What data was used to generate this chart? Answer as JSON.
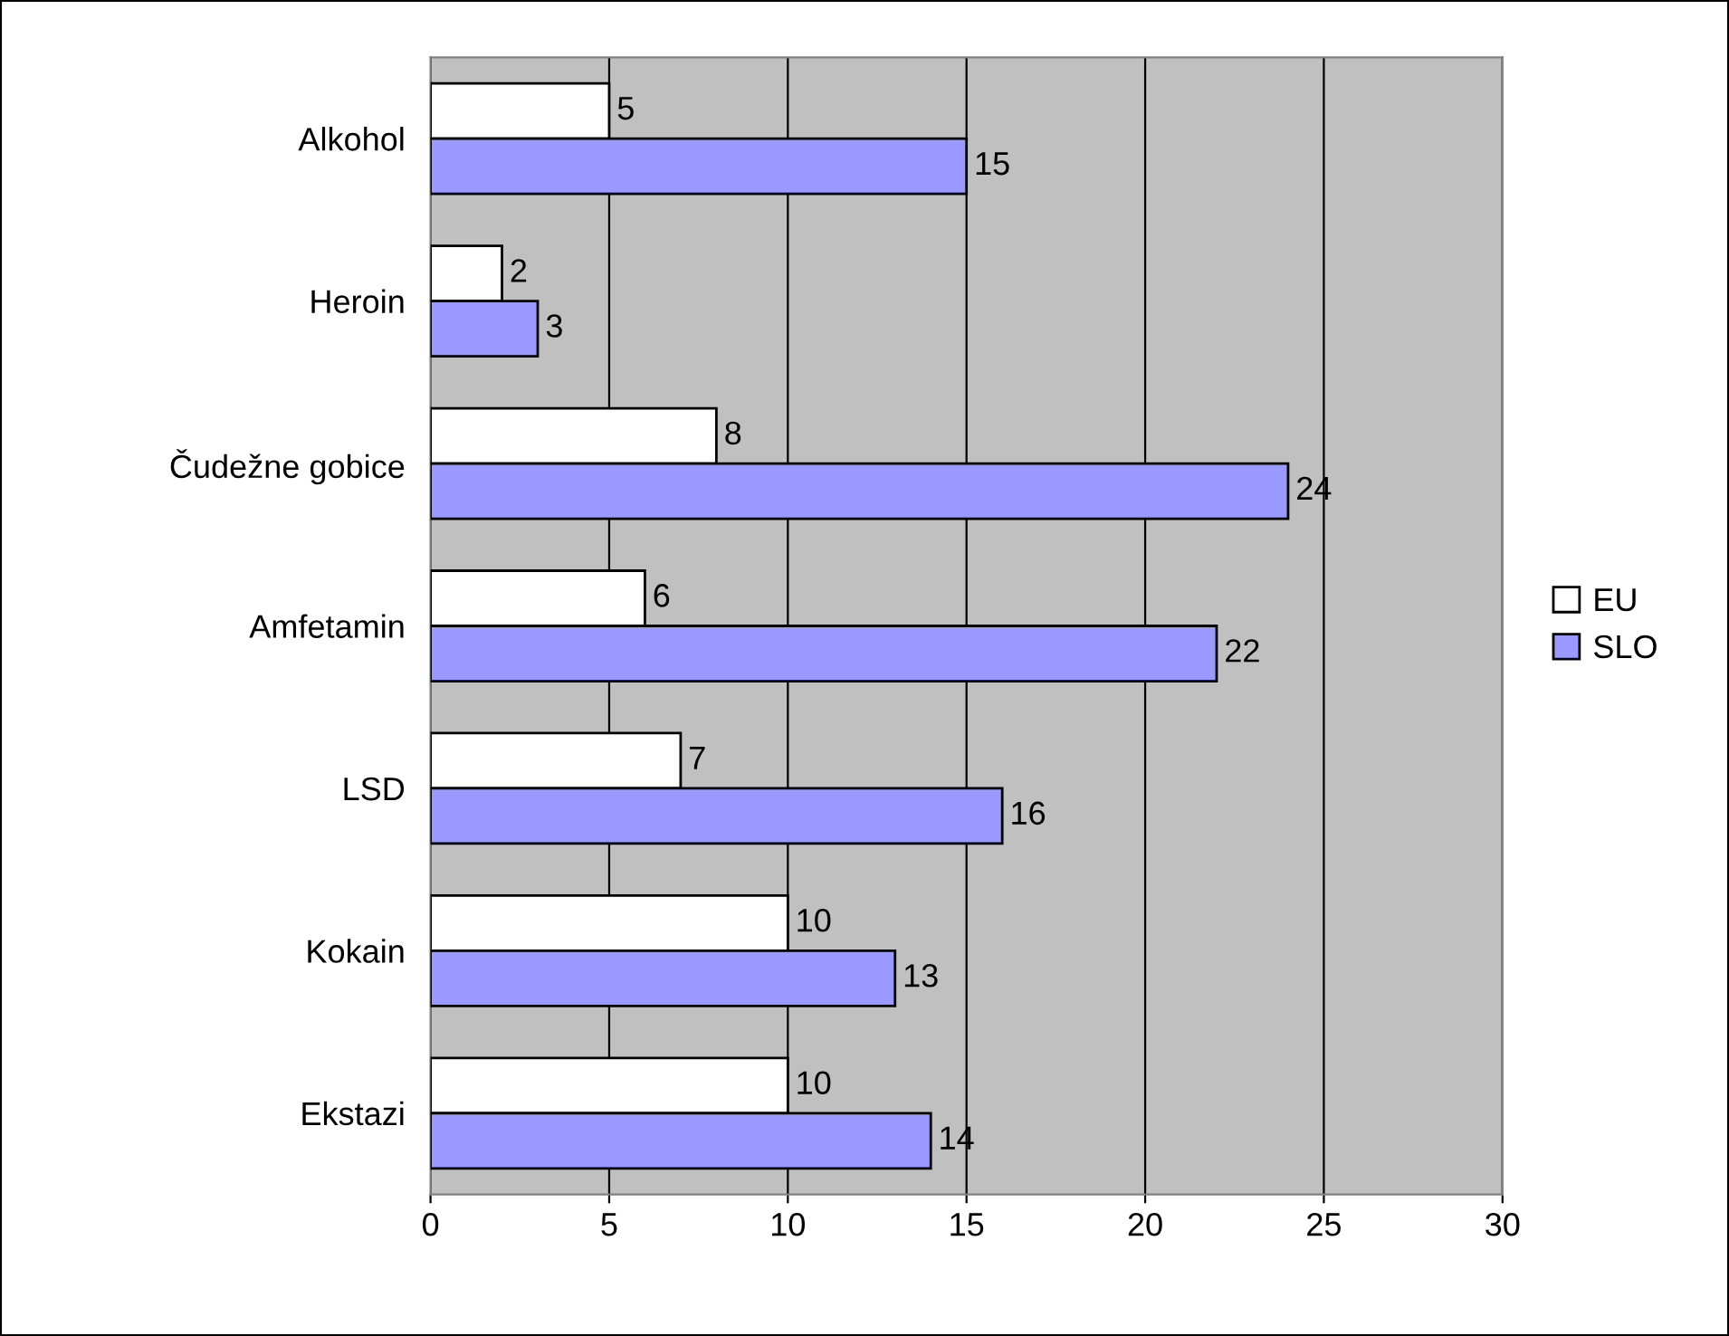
{
  "chart_data": {
    "type": "bar",
    "orientation": "horizontal",
    "categories": [
      "Alkohol",
      "Heroin",
      "Čudežne gobice",
      "Amfetamin",
      "LSD",
      "Kokain",
      "Ekstazi"
    ],
    "series": [
      {
        "name": "EU",
        "color": "#ffffff",
        "values": [
          5,
          2,
          8,
          6,
          7,
          10,
          10
        ]
      },
      {
        "name": "SLO",
        "color": "#9999ff",
        "values": [
          15,
          3,
          24,
          22,
          16,
          13,
          14
        ]
      }
    ],
    "xlim": [
      0,
      30
    ],
    "xticks": [
      0,
      5,
      10,
      15,
      20,
      25,
      30
    ],
    "grid": "x",
    "legend": "right",
    "data_labels": true
  }
}
